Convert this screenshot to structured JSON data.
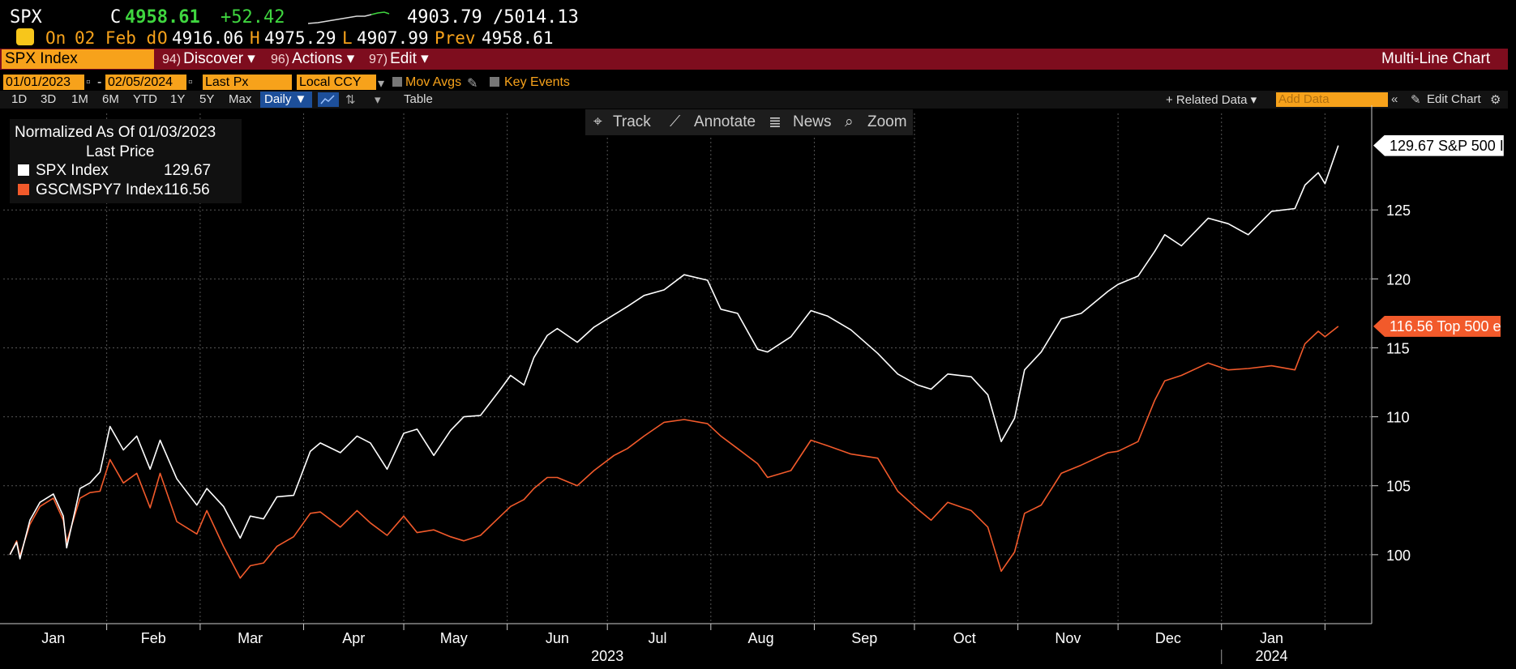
{
  "quote": {
    "ticker": "SPX",
    "flag": "C",
    "price": "4958.61",
    "change": "+52.42",
    "range": "4903.79 /5014.13",
    "status": "On",
    "date": "02 Feb d",
    "open_label": "O",
    "open": "4916.06",
    "high_label": "H",
    "high": "4975.29",
    "low_label": "L",
    "low": "4907.99",
    "prev_label": "Prev",
    "prev": "4958.61"
  },
  "menubar": {
    "security": "SPX Index",
    "items": [
      {
        "num": "94)",
        "label": "Discover ▾"
      },
      {
        "num": "96)",
        "label": "Actions ▾"
      },
      {
        "num": "97)",
        "label": "Edit ▾"
      }
    ],
    "title": "Multi-Line Chart"
  },
  "controls": {
    "start_date": "01/01/2023",
    "end_date": "02/05/2024",
    "field": "Last Px",
    "currency": "Local CCY",
    "mov_avgs": "Mov Avgs",
    "key_events": "Key Events"
  },
  "range_bar": {
    "periods": [
      "1D",
      "3D",
      "1M",
      "6M",
      "YTD",
      "1Y",
      "5Y",
      "Max"
    ],
    "frequency": "Daily ▼",
    "table": "Table",
    "related": "+ Related Data ▾",
    "add_data_placeholder": "Add Data",
    "edit_chart": "Edit Chart"
  },
  "tools": {
    "track": "Track",
    "annotate": "Annotate",
    "news": "News",
    "zoom": "Zoom"
  },
  "legend": {
    "normalized": "Normalized As Of 01/03/2023",
    "last_price": "Last Price",
    "rows": [
      {
        "name": "SPX Index",
        "value": "129.67",
        "color": "#ffffff"
      },
      {
        "name": "GSCMSPY7 Index",
        "value": "116.56",
        "color": "#f25a2b"
      }
    ]
  },
  "last_labels": {
    "spx": "129.67 S&P 500 I",
    "gscm": "116.56 Top 500 e"
  },
  "chart_data": {
    "type": "line",
    "title": "",
    "xlabel": "",
    "ylabel": "",
    "ylim": [
      95,
      132
    ],
    "yticks": [
      100,
      105,
      110,
      115,
      120,
      125
    ],
    "x_range": [
      "2023-01-03",
      "2024-02-05"
    ],
    "month_ticks": [
      "Jan",
      "Feb",
      "Mar",
      "Apr",
      "May",
      "Jun",
      "Jul",
      "Aug",
      "Sep",
      "Oct",
      "Nov",
      "Dec",
      "Jan"
    ],
    "year_labels": [
      "2023",
      "2024"
    ],
    "grid": true,
    "series": [
      {
        "name": "SPX Index",
        "color": "#ffffff",
        "points": [
          [
            "2023-01-03",
            100.0
          ],
          [
            "2023-01-05",
            100.9
          ],
          [
            "2023-01-06",
            99.7
          ],
          [
            "2023-01-09",
            102.5
          ],
          [
            "2023-01-12",
            103.8
          ],
          [
            "2023-01-16",
            104.4
          ],
          [
            "2023-01-19",
            102.8
          ],
          [
            "2023-01-20",
            100.5
          ],
          [
            "2023-01-24",
            104.8
          ],
          [
            "2023-01-27",
            105.2
          ],
          [
            "2023-01-30",
            106.0
          ],
          [
            "2023-02-02",
            109.3
          ],
          [
            "2023-02-06",
            107.6
          ],
          [
            "2023-02-10",
            108.6
          ],
          [
            "2023-02-14",
            106.2
          ],
          [
            "2023-02-17",
            108.3
          ],
          [
            "2023-02-22",
            105.5
          ],
          [
            "2023-02-28",
            103.6
          ],
          [
            "2023-03-03",
            104.8
          ],
          [
            "2023-03-08",
            103.5
          ],
          [
            "2023-03-13",
            101.2
          ],
          [
            "2023-03-16",
            102.8
          ],
          [
            "2023-03-20",
            102.6
          ],
          [
            "2023-03-24",
            104.2
          ],
          [
            "2023-03-29",
            104.3
          ],
          [
            "2023-04-03",
            107.5
          ],
          [
            "2023-04-06",
            108.1
          ],
          [
            "2023-04-12",
            107.4
          ],
          [
            "2023-04-17",
            108.6
          ],
          [
            "2023-04-21",
            108.1
          ],
          [
            "2023-04-26",
            106.2
          ],
          [
            "2023-05-01",
            108.8
          ],
          [
            "2023-05-05",
            109.1
          ],
          [
            "2023-05-10",
            107.2
          ],
          [
            "2023-05-15",
            109.0
          ],
          [
            "2023-05-19",
            110.0
          ],
          [
            "2023-05-24",
            110.1
          ],
          [
            "2023-05-30",
            112.0
          ],
          [
            "2023-06-02",
            113.0
          ],
          [
            "2023-06-06",
            112.3
          ],
          [
            "2023-06-09",
            114.3
          ],
          [
            "2023-06-13",
            115.9
          ],
          [
            "2023-06-16",
            116.4
          ],
          [
            "2023-06-22",
            115.4
          ],
          [
            "2023-06-27",
            116.5
          ],
          [
            "2023-07-03",
            117.4
          ],
          [
            "2023-07-07",
            118.0
          ],
          [
            "2023-07-12",
            118.8
          ],
          [
            "2023-07-18",
            119.2
          ],
          [
            "2023-07-24",
            120.3
          ],
          [
            "2023-07-31",
            119.9
          ],
          [
            "2023-08-04",
            117.8
          ],
          [
            "2023-08-09",
            117.5
          ],
          [
            "2023-08-15",
            114.9
          ],
          [
            "2023-08-18",
            114.7
          ],
          [
            "2023-08-25",
            115.8
          ],
          [
            "2023-08-31",
            117.7
          ],
          [
            "2023-09-05",
            117.3
          ],
          [
            "2023-09-12",
            116.3
          ],
          [
            "2023-09-20",
            114.6
          ],
          [
            "2023-09-26",
            113.1
          ],
          [
            "2023-10-02",
            112.3
          ],
          [
            "2023-10-06",
            112.0
          ],
          [
            "2023-10-11",
            113.1
          ],
          [
            "2023-10-18",
            112.9
          ],
          [
            "2023-10-23",
            111.6
          ],
          [
            "2023-10-27",
            108.2
          ],
          [
            "2023-10-31",
            109.9
          ],
          [
            "2023-11-03",
            113.4
          ],
          [
            "2023-11-08",
            114.7
          ],
          [
            "2023-11-14",
            117.1
          ],
          [
            "2023-11-20",
            117.5
          ],
          [
            "2023-11-28",
            119.1
          ],
          [
            "2023-12-01",
            119.6
          ],
          [
            "2023-12-07",
            120.2
          ],
          [
            "2023-12-12",
            122.0
          ],
          [
            "2023-12-15",
            123.2
          ],
          [
            "2023-12-20",
            122.4
          ],
          [
            "2023-12-28",
            124.4
          ],
          [
            "2024-01-03",
            124.0
          ],
          [
            "2024-01-09",
            123.2
          ],
          [
            "2024-01-16",
            124.9
          ],
          [
            "2024-01-23",
            125.1
          ],
          [
            "2024-01-26",
            126.8
          ],
          [
            "2024-01-30",
            127.7
          ],
          [
            "2024-02-01",
            126.9
          ],
          [
            "2024-02-05",
            129.67
          ]
        ]
      },
      {
        "name": "GSCMSPY7 Index",
        "color": "#f25a2b",
        "points": [
          [
            "2023-01-03",
            100.0
          ],
          [
            "2023-01-05",
            101.0
          ],
          [
            "2023-01-06",
            99.9
          ],
          [
            "2023-01-09",
            102.2
          ],
          [
            "2023-01-12",
            103.5
          ],
          [
            "2023-01-16",
            104.1
          ],
          [
            "2023-01-19",
            102.5
          ],
          [
            "2023-01-20",
            100.9
          ],
          [
            "2023-01-24",
            104.1
          ],
          [
            "2023-01-27",
            104.5
          ],
          [
            "2023-01-30",
            104.6
          ],
          [
            "2023-02-02",
            106.9
          ],
          [
            "2023-02-06",
            105.2
          ],
          [
            "2023-02-10",
            105.9
          ],
          [
            "2023-02-14",
            103.4
          ],
          [
            "2023-02-17",
            105.9
          ],
          [
            "2023-02-22",
            102.4
          ],
          [
            "2023-02-28",
            101.5
          ],
          [
            "2023-03-03",
            103.2
          ],
          [
            "2023-03-08",
            100.6
          ],
          [
            "2023-03-13",
            98.3
          ],
          [
            "2023-03-16",
            99.2
          ],
          [
            "2023-03-20",
            99.4
          ],
          [
            "2023-03-24",
            100.6
          ],
          [
            "2023-03-29",
            101.3
          ],
          [
            "2023-04-03",
            103.0
          ],
          [
            "2023-04-06",
            103.1
          ],
          [
            "2023-04-12",
            102.0
          ],
          [
            "2023-04-17",
            103.2
          ],
          [
            "2023-04-21",
            102.3
          ],
          [
            "2023-04-26",
            101.4
          ],
          [
            "2023-05-01",
            102.8
          ],
          [
            "2023-05-05",
            101.6
          ],
          [
            "2023-05-10",
            101.8
          ],
          [
            "2023-05-15",
            101.3
          ],
          [
            "2023-05-19",
            101.0
          ],
          [
            "2023-05-24",
            101.4
          ],
          [
            "2023-05-30",
            102.8
          ],
          [
            "2023-06-02",
            103.5
          ],
          [
            "2023-06-06",
            104.0
          ],
          [
            "2023-06-09",
            104.8
          ],
          [
            "2023-06-13",
            105.6
          ],
          [
            "2023-06-16",
            105.6
          ],
          [
            "2023-06-22",
            105.0
          ],
          [
            "2023-06-27",
            106.1
          ],
          [
            "2023-07-03",
            107.2
          ],
          [
            "2023-07-07",
            107.7
          ],
          [
            "2023-07-12",
            108.6
          ],
          [
            "2023-07-18",
            109.6
          ],
          [
            "2023-07-24",
            109.8
          ],
          [
            "2023-07-31",
            109.5
          ],
          [
            "2023-08-04",
            108.6
          ],
          [
            "2023-08-09",
            107.7
          ],
          [
            "2023-08-15",
            106.6
          ],
          [
            "2023-08-18",
            105.6
          ],
          [
            "2023-08-25",
            106.1
          ],
          [
            "2023-08-31",
            108.3
          ],
          [
            "2023-09-05",
            107.9
          ],
          [
            "2023-09-12",
            107.3
          ],
          [
            "2023-09-20",
            107.0
          ],
          [
            "2023-09-26",
            104.6
          ],
          [
            "2023-10-02",
            103.3
          ],
          [
            "2023-10-06",
            102.5
          ],
          [
            "2023-10-11",
            103.8
          ],
          [
            "2023-10-18",
            103.2
          ],
          [
            "2023-10-23",
            102.0
          ],
          [
            "2023-10-27",
            98.8
          ],
          [
            "2023-10-31",
            100.2
          ],
          [
            "2023-11-03",
            103.0
          ],
          [
            "2023-11-08",
            103.6
          ],
          [
            "2023-11-14",
            105.9
          ],
          [
            "2023-11-20",
            106.5
          ],
          [
            "2023-11-28",
            107.4
          ],
          [
            "2023-12-01",
            107.5
          ],
          [
            "2023-12-07",
            108.2
          ],
          [
            "2023-12-12",
            111.2
          ],
          [
            "2023-12-15",
            112.6
          ],
          [
            "2023-12-20",
            113.0
          ],
          [
            "2023-12-28",
            113.9
          ],
          [
            "2024-01-03",
            113.4
          ],
          [
            "2024-01-09",
            113.5
          ],
          [
            "2024-01-16",
            113.7
          ],
          [
            "2024-01-23",
            113.4
          ],
          [
            "2024-01-26",
            115.3
          ],
          [
            "2024-01-30",
            116.2
          ],
          [
            "2024-02-01",
            115.8
          ],
          [
            "2024-02-05",
            116.56
          ]
        ]
      }
    ]
  }
}
